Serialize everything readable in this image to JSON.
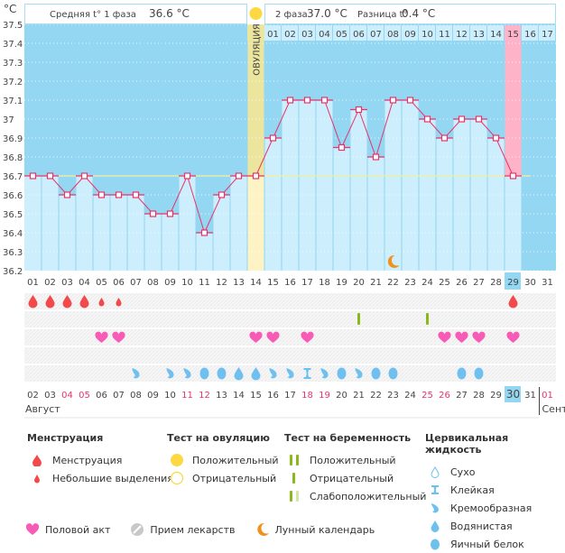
{
  "chart_data": {
    "type": "line",
    "title": "",
    "ylabel": "°C",
    "ylim": [
      36.2,
      37.5
    ],
    "yticks": [
      "37.5",
      "37.4",
      "37.3",
      "37.2",
      "37.1",
      "37",
      "36.9",
      "36.8",
      "36.7",
      "36.6",
      "36.5",
      "36.4",
      "36.3",
      "36.2"
    ],
    "cycle_days": [
      "01",
      "02",
      "03",
      "04",
      "05",
      "06",
      "07",
      "08",
      "09",
      "10",
      "11",
      "12",
      "13",
      "14",
      "15",
      "16",
      "17",
      "18",
      "19",
      "20",
      "21",
      "22",
      "23",
      "24",
      "25",
      "26",
      "27",
      "28",
      "29",
      "30",
      "31"
    ],
    "temperatures": [
      36.7,
      36.7,
      36.6,
      36.7,
      36.6,
      36.6,
      36.6,
      36.5,
      36.5,
      36.7,
      36.4,
      36.6,
      36.7,
      36.7,
      36.9,
      37.1,
      37.1,
      37.1,
      36.85,
      37.05,
      36.8,
      37.1,
      37.1,
      37.0,
      36.9,
      37.0,
      37.0,
      36.9,
      36.7,
      null,
      null
    ],
    "coverline": 36.7,
    "ovulation_day_index": 13,
    "ovulation_label": "ОВУЛЯЦИЯ",
    "luteal_days": [
      "01",
      "02",
      "03",
      "04",
      "05",
      "06",
      "07",
      "08",
      "09",
      "10",
      "11",
      "12",
      "13",
      "14",
      "15",
      "16",
      "17"
    ],
    "luteal_highlight": "15",
    "current_day": "29",
    "moon_day_index": 21,
    "summary": {
      "phase1_label": "Средняя t° 1 фаза",
      "phase1_value": "36.6 °C",
      "phase2_label": "2 фаза",
      "phase2_value": "37.0 °C",
      "diff_label": "Разница t°",
      "diff_value": "0.4 °C"
    },
    "calendar_dates": [
      "02",
      "03",
      "04",
      "05",
      "06",
      "07",
      "08",
      "09",
      "10",
      "11",
      "12",
      "13",
      "14",
      "15",
      "16",
      "17",
      "18",
      "19",
      "20",
      "21",
      "22",
      "23",
      "24",
      "25",
      "26",
      "27",
      "28",
      "29",
      "30",
      "31"
    ],
    "calendar_red_dates": [
      "04",
      "05",
      "11",
      "12",
      "18",
      "19",
      "25",
      "26"
    ],
    "today_date": "30",
    "next_month_date": "01",
    "month_label": "Август",
    "next_month_label": "Сент",
    "menstruation": [
      "heavy",
      "heavy",
      "heavy",
      "heavy",
      "light",
      "light",
      null,
      null,
      null,
      null,
      null,
      null,
      null,
      null,
      null,
      null,
      null,
      null,
      null,
      null,
      null,
      null,
      null,
      null,
      null,
      null,
      null,
      null,
      "heavy",
      null,
      null
    ],
    "pregnancy_test": [
      null,
      null,
      null,
      null,
      null,
      null,
      null,
      null,
      null,
      null,
      null,
      null,
      null,
      null,
      null,
      null,
      null,
      null,
      null,
      "negative",
      null,
      null,
      null,
      "negative",
      null,
      null,
      null,
      null,
      null,
      null,
      null
    ],
    "intercourse": [
      false,
      false,
      false,
      false,
      true,
      true,
      false,
      false,
      false,
      false,
      false,
      false,
      false,
      true,
      true,
      false,
      true,
      false,
      false,
      false,
      false,
      false,
      false,
      false,
      true,
      true,
      true,
      false,
      true,
      false,
      false
    ],
    "cervical_fluid": [
      null,
      null,
      null,
      null,
      null,
      null,
      "creamy",
      null,
      "creamy",
      "creamy",
      "eggwhite",
      "eggwhite",
      "watery",
      "watery",
      "creamy",
      "creamy",
      "sticky",
      "creamy",
      "eggwhite",
      "creamy",
      "eggwhite",
      "eggwhite",
      null,
      null,
      null,
      "eggwhite",
      "eggwhite",
      null,
      null,
      null,
      null
    ]
  },
  "colors": {
    "plot_bg": "#93d7f2",
    "bar_fill": "#cdeefc",
    "ovulation": "#fbe88e",
    "highlight_pink": "#ffb3c8",
    "line": "#e8336a",
    "coverline": "#f4ee9a",
    "menstruation": "#f24a4a",
    "heart": "#f75bb5",
    "test_green": "#8bb81c",
    "test_light": "#d3e6a8",
    "fluid": "#6fbfef",
    "moon": "#f0921e",
    "ovu_sun": "#fdd843",
    "red_date": "#e8336a",
    "today_bg": "#93d7f2"
  },
  "legend": {
    "menstruation": {
      "title": "Менструация",
      "items": [
        "Менструация",
        "Небольшие выделения"
      ]
    },
    "ovulation_test": {
      "title": "Тест на овуляцию",
      "items": [
        "Положительный",
        "Отрицательный"
      ]
    },
    "pregnancy_test": {
      "title": "Тест на беременность",
      "items": [
        "Положительный",
        "Отрицательный",
        "Слабоположительный"
      ]
    },
    "cervical_fluid": {
      "title": "Цервикальная жидкость",
      "items": [
        "Сухо",
        "Клейкая",
        "Кремообразная",
        "Водянистая",
        "Яичный белок"
      ]
    },
    "bottom": [
      "Половой акт",
      "Прием лекарств",
      "Лунный календарь"
    ]
  }
}
